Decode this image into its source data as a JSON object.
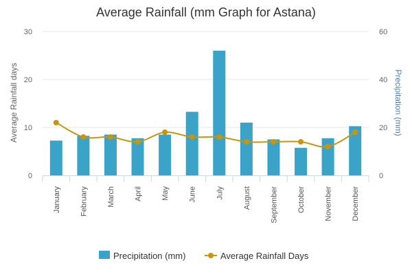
{
  "chart_data": {
    "type": "bar+line",
    "title": "Average Rainfall (mm Graph for Astana)",
    "categories": [
      "January",
      "February",
      "March",
      "April",
      "May",
      "June",
      "July",
      "August",
      "September",
      "October",
      "November",
      "December"
    ],
    "series": [
      {
        "name": "Precipitation (mm)",
        "type": "bar",
        "axis": "right",
        "color": "#3aa3c7",
        "values": [
          14.5,
          16.5,
          17,
          15.5,
          17,
          26.5,
          52,
          22,
          15,
          11.5,
          15.5,
          20.5
        ]
      },
      {
        "name": "Average Rainfall Days",
        "type": "line",
        "axis": "left",
        "color": "#c8950f",
        "values": [
          11,
          8,
          8,
          7,
          9,
          8,
          8,
          7,
          7,
          7,
          6,
          9
        ]
      }
    ],
    "left_axis": {
      "label": "Average Rainfall days",
      "range": [
        0,
        30
      ],
      "ticks": [
        "0",
        "10",
        "20",
        "30"
      ]
    },
    "right_axis": {
      "label": "Precipitation (mm)",
      "range": [
        0,
        60
      ],
      "ticks": [
        "0",
        "20",
        "40",
        "60"
      ]
    },
    "grid": true,
    "legend_position": "bottom"
  }
}
